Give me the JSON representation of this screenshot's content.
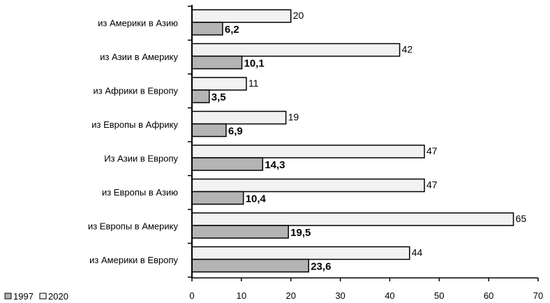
{
  "chart_data": {
    "type": "bar",
    "orientation": "horizontal",
    "categories": [
      "из Америки в Азию",
      "из Азии в Америку",
      "из Африки в Европу",
      "из Европы в Африку",
      "Из Азии в Европу",
      "из Европы в  Азию",
      "из Европы в Америку",
      "из Америки в Европу"
    ],
    "series": [
      {
        "name": "2020",
        "values": [
          20,
          42,
          11,
          19,
          47,
          47,
          65,
          44
        ],
        "labels": [
          "20",
          "42",
          "11",
          "19",
          "47",
          "47",
          "65",
          "44"
        ],
        "color": "#f2f2f2"
      },
      {
        "name": "1997",
        "values": [
          6.2,
          10.1,
          3.5,
          6.9,
          14.3,
          10.4,
          19.5,
          23.6
        ],
        "labels": [
          "6,2",
          "10,1",
          "3,5",
          "6,9",
          "14,3",
          "10,4",
          "19,5",
          "23,6"
        ],
        "color": "#b4b4b4"
      }
    ],
    "xlim": [
      0,
      70
    ],
    "xticks": [
      "0",
      "10",
      "20",
      "30",
      "40",
      "50",
      "60",
      "70"
    ],
    "grid": false,
    "legend_position": "bottom-left",
    "legend": [
      "1997",
      "2020"
    ]
  }
}
